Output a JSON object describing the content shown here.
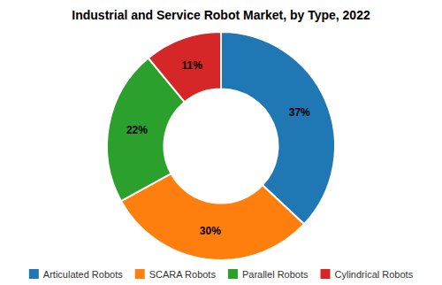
{
  "chart_data": {
    "type": "donut",
    "title": "Industrial and Service Robot Market, by Type, 2022",
    "categories": [
      "Articulated Robots",
      "SCARA Robots",
      "Parallel Robots",
      "Cylindrical Robots"
    ],
    "values": [
      37,
      30,
      22,
      11
    ],
    "value_labels": [
      "37%",
      "30%",
      "22%",
      "11%"
    ],
    "data_labels": true,
    "legend": "bottom"
  }
}
